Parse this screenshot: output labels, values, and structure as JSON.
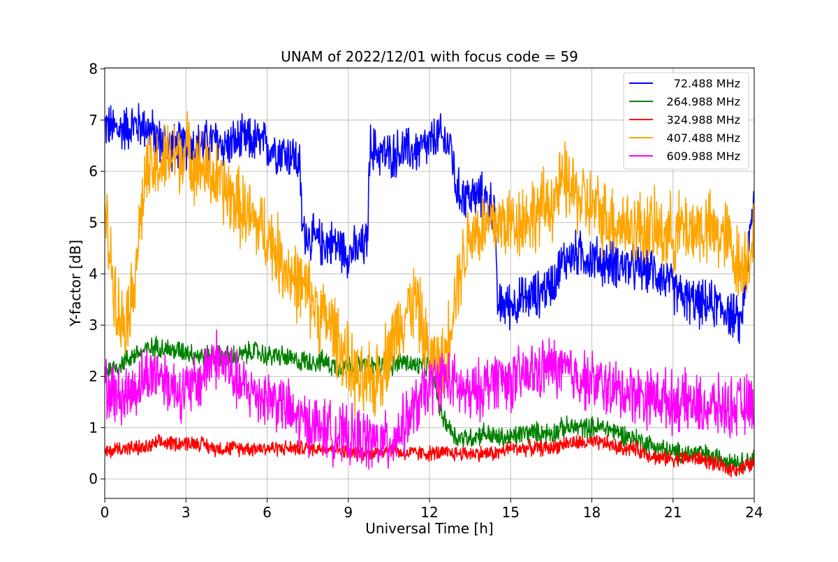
{
  "chart_data": {
    "type": "line",
    "title": "UNAM of 2022/12/01 with focus code = 59",
    "xlabel": "Universal Time [h]",
    "ylabel": "Y-factor [dB]",
    "xlim": [
      0,
      24
    ],
    "ylim": [
      -0.38,
      8.02
    ],
    "xticks": [
      0,
      3,
      6,
      9,
      12,
      15,
      18,
      21,
      24
    ],
    "yticks": [
      0,
      1,
      2,
      3,
      4,
      5,
      6,
      7,
      8
    ],
    "grid": true,
    "legend_position": "top-right",
    "series": [
      {
        "name": "72.488 MHz",
        "color": "#0000ff",
        "x": [
          0,
          0.5,
          1,
          1.5,
          2,
          2.5,
          3,
          3.5,
          4,
          4.5,
          5,
          5.5,
          6,
          6.5,
          7,
          7.2,
          7.3,
          7.6,
          8,
          8.5,
          9,
          9.5,
          9.7,
          9.8,
          10,
          10.5,
          11,
          11.5,
          12,
          12.3,
          12.5,
          12.8,
          13,
          13.5,
          14,
          14.4,
          14.5,
          15,
          15.5,
          16,
          16.5,
          17,
          17.5,
          18,
          18.5,
          19,
          19.5,
          20,
          20.5,
          21,
          21.5,
          22,
          22.5,
          23,
          23.5,
          24
        ],
        "y": [
          6.9,
          6.8,
          6.9,
          6.9,
          6.6,
          6.5,
          6.5,
          6.5,
          6.6,
          6.5,
          6.6,
          6.6,
          6.5,
          6.4,
          6.3,
          6.1,
          4.9,
          4.7,
          4.6,
          4.6,
          4.4,
          4.5,
          4.6,
          6.5,
          6.4,
          6.3,
          6.4,
          6.4,
          6.5,
          6.7,
          6.6,
          6.5,
          5.6,
          5.5,
          5.5,
          5.3,
          3.4,
          3.4,
          3.5,
          3.6,
          3.8,
          4.3,
          4.4,
          4.3,
          4.2,
          4.2,
          4.1,
          4.1,
          4.0,
          3.7,
          3.5,
          3.4,
          3.4,
          3.3,
          3.0,
          5.5
        ]
      },
      {
        "name": "264.988 MHz",
        "color": "#008000",
        "x": [
          0,
          0.5,
          1,
          1.5,
          2,
          2.5,
          3,
          3.5,
          4,
          4.5,
          5,
          5.5,
          6,
          6.5,
          7,
          7.5,
          8,
          8.5,
          9,
          9.5,
          10,
          10.5,
          11,
          11.5,
          12,
          12.5,
          13,
          13.5,
          14,
          14.5,
          15,
          15.5,
          16,
          16.5,
          17,
          17.5,
          18,
          18.5,
          19,
          19.5,
          20,
          20.5,
          21,
          21.5,
          22,
          22.5,
          23,
          23.5,
          24
        ],
        "y": [
          2.1,
          2.2,
          2.4,
          2.5,
          2.6,
          2.5,
          2.5,
          2.4,
          2.4,
          2.4,
          2.4,
          2.5,
          2.4,
          2.4,
          2.3,
          2.3,
          2.3,
          2.2,
          2.2,
          2.2,
          2.2,
          2.2,
          2.3,
          2.2,
          2.2,
          1.2,
          0.8,
          0.8,
          0.9,
          0.8,
          0.8,
          0.9,
          0.9,
          0.9,
          1.0,
          1.0,
          1.0,
          1.0,
          0.9,
          0.8,
          0.7,
          0.6,
          0.5,
          0.5,
          0.5,
          0.4,
          0.4,
          0.3,
          0.4
        ]
      },
      {
        "name": "324.988 MHz",
        "color": "#ff0000",
        "x": [
          0,
          0.5,
          1,
          1.5,
          2,
          2.5,
          3,
          3.5,
          4,
          4.5,
          5,
          5.5,
          6,
          6.5,
          7,
          7.5,
          8,
          8.5,
          9,
          9.5,
          10,
          10.5,
          11,
          11.5,
          12,
          12.5,
          13,
          13.5,
          14,
          14.5,
          15,
          15.5,
          16,
          16.5,
          17,
          17.5,
          18,
          18.5,
          19,
          19.5,
          20,
          20.5,
          21,
          21.5,
          22,
          22.5,
          23,
          23.5,
          24
        ],
        "y": [
          0.5,
          0.6,
          0.6,
          0.6,
          0.7,
          0.7,
          0.7,
          0.7,
          0.6,
          0.6,
          0.6,
          0.6,
          0.6,
          0.6,
          0.6,
          0.6,
          0.6,
          0.6,
          0.5,
          0.5,
          0.5,
          0.6,
          0.5,
          0.5,
          0.5,
          0.5,
          0.5,
          0.5,
          0.5,
          0.5,
          0.6,
          0.6,
          0.6,
          0.6,
          0.7,
          0.7,
          0.7,
          0.7,
          0.6,
          0.6,
          0.5,
          0.4,
          0.4,
          0.4,
          0.4,
          0.3,
          0.2,
          0.2,
          0.3
        ]
      },
      {
        "name": "407.488 MHz",
        "color": "#ffa500",
        "x": [
          0,
          0.3,
          0.6,
          1,
          1.5,
          2,
          2.5,
          3,
          3.5,
          4,
          4.5,
          5,
          5.5,
          6,
          6.5,
          7,
          7.5,
          8,
          8.5,
          9,
          9.5,
          10,
          10.5,
          11,
          11.5,
          12,
          12.5,
          13,
          13.5,
          14,
          14.5,
          15,
          15.5,
          16,
          16.5,
          17,
          17.5,
          18,
          18.5,
          19,
          19.5,
          20,
          20.5,
          21,
          21.5,
          22,
          22.5,
          23,
          23.5,
          24
        ],
        "y": [
          5.2,
          4.0,
          3.0,
          3.5,
          5.9,
          6.1,
          6.3,
          6.4,
          6.1,
          5.9,
          5.6,
          5.3,
          5.0,
          4.8,
          4.3,
          3.9,
          3.6,
          3.2,
          2.9,
          2.2,
          1.8,
          1.9,
          2.5,
          3.2,
          3.5,
          2.3,
          2.2,
          3.8,
          4.8,
          4.9,
          5.0,
          5.0,
          5.1,
          5.2,
          5.4,
          5.8,
          5.5,
          5.3,
          5.1,
          5.0,
          4.9,
          4.9,
          4.8,
          4.8,
          4.9,
          4.9,
          4.8,
          4.7,
          4.1,
          4.7
        ]
      },
      {
        "name": "609.988 MHz",
        "color": "#ff00ff",
        "x": [
          0,
          0.5,
          1,
          1.5,
          2,
          2.5,
          3,
          3.5,
          4,
          4.5,
          5,
          5.5,
          6,
          6.5,
          7,
          7.5,
          8,
          8.5,
          9,
          9.5,
          10,
          10.5,
          11,
          11.5,
          12,
          12.5,
          13,
          13.5,
          14,
          14.5,
          15,
          15.5,
          16,
          16.5,
          17,
          17.5,
          18,
          18.5,
          19,
          19.5,
          20,
          20.5,
          21,
          21.5,
          22,
          22.5,
          23,
          23.5,
          24
        ],
        "y": [
          1.8,
          1.6,
          1.7,
          2.0,
          2.1,
          1.8,
          1.7,
          1.9,
          2.4,
          2.2,
          1.8,
          1.7,
          1.6,
          1.5,
          1.2,
          1.1,
          1.0,
          0.9,
          0.8,
          0.8,
          0.7,
          0.7,
          1.0,
          1.4,
          1.8,
          2.0,
          1.8,
          1.6,
          1.8,
          2.0,
          1.9,
          2.0,
          2.1,
          2.2,
          2.1,
          2.0,
          1.9,
          1.8,
          1.7,
          1.7,
          1.6,
          1.6,
          1.5,
          1.5,
          1.4,
          1.4,
          1.4,
          1.4,
          1.5
        ]
      }
    ]
  }
}
